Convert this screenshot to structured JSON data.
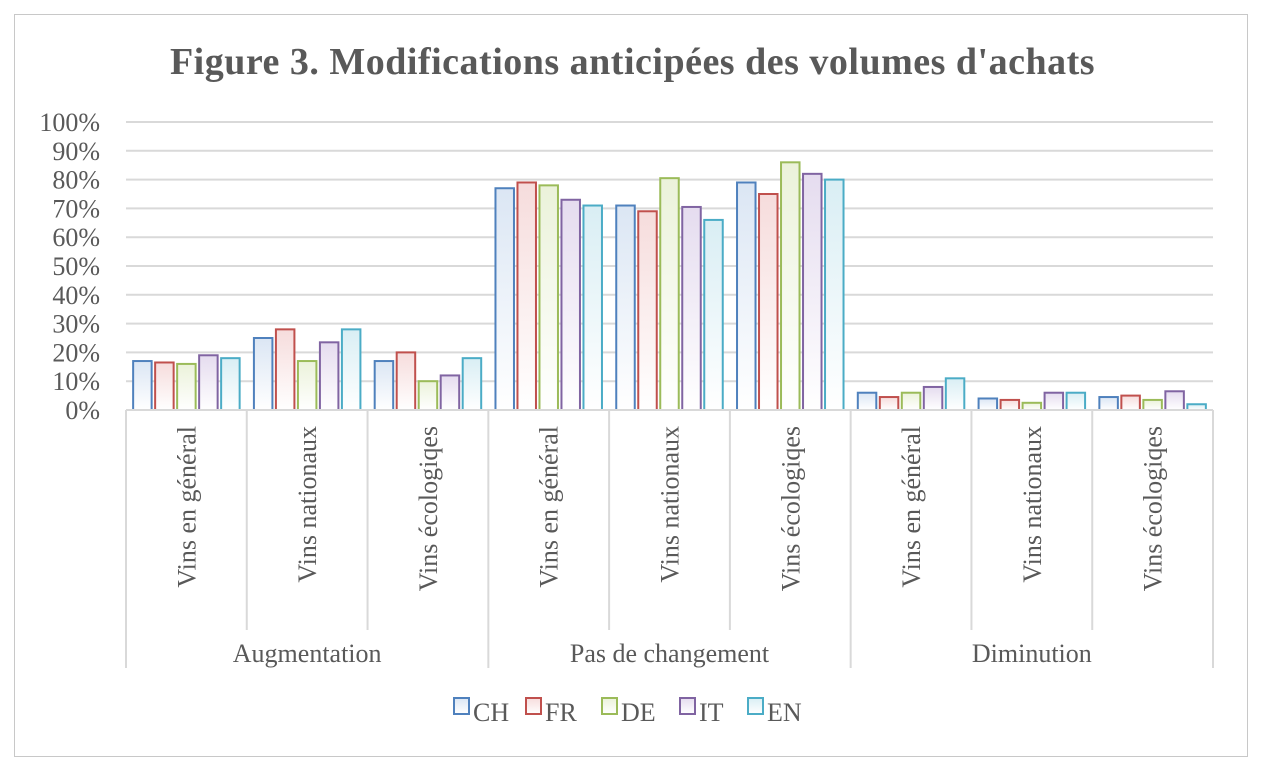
{
  "chart_data": {
    "type": "bar",
    "title": "Figure 3. Modifications anticipées des volumes d'achats",
    "groups": [
      "Augmentation",
      "Pas de changement",
      "Diminution"
    ],
    "categories": [
      "Vins en général",
      "Vins nationaux",
      "Vins écologiqes",
      "Vins en général",
      "Vins nationaux",
      "Vins écologiqes",
      "Vins en général",
      "Vins nationaux",
      "Vins écologiqes"
    ],
    "series": [
      {
        "name": "CH",
        "color": "#4f81bd",
        "fill_light": "#dbe6f4",
        "values": [
          17,
          25,
          17,
          77,
          71,
          79,
          6,
          4,
          4.5
        ]
      },
      {
        "name": "FR",
        "color": "#c0504d",
        "fill_light": "#f6dcdc",
        "values": [
          16.5,
          28,
          20,
          79,
          69,
          75,
          4.5,
          3.5,
          5
        ]
      },
      {
        "name": "DE",
        "color": "#9bbb59",
        "fill_light": "#ebf2da",
        "values": [
          16,
          17,
          10,
          78,
          80.5,
          86,
          6,
          2.5,
          3.5
        ]
      },
      {
        "name": "IT",
        "color": "#8064a2",
        "fill_light": "#e5dcef",
        "values": [
          19,
          23.5,
          12,
          73,
          70.5,
          82,
          8,
          6,
          6.5
        ]
      },
      {
        "name": "EN",
        "color": "#4bacc6",
        "fill_light": "#d9eef4",
        "values": [
          18,
          28,
          18,
          71,
          66,
          80,
          11,
          6,
          2
        ]
      }
    ],
    "yticks": [
      "0%",
      "10%",
      "20%",
      "30%",
      "40%",
      "50%",
      "60%",
      "70%",
      "80%",
      "90%",
      "100%"
    ],
    "ylim": [
      0,
      100
    ],
    "grid": true,
    "legend_position": "bottom",
    "xlabel": "",
    "ylabel": ""
  }
}
